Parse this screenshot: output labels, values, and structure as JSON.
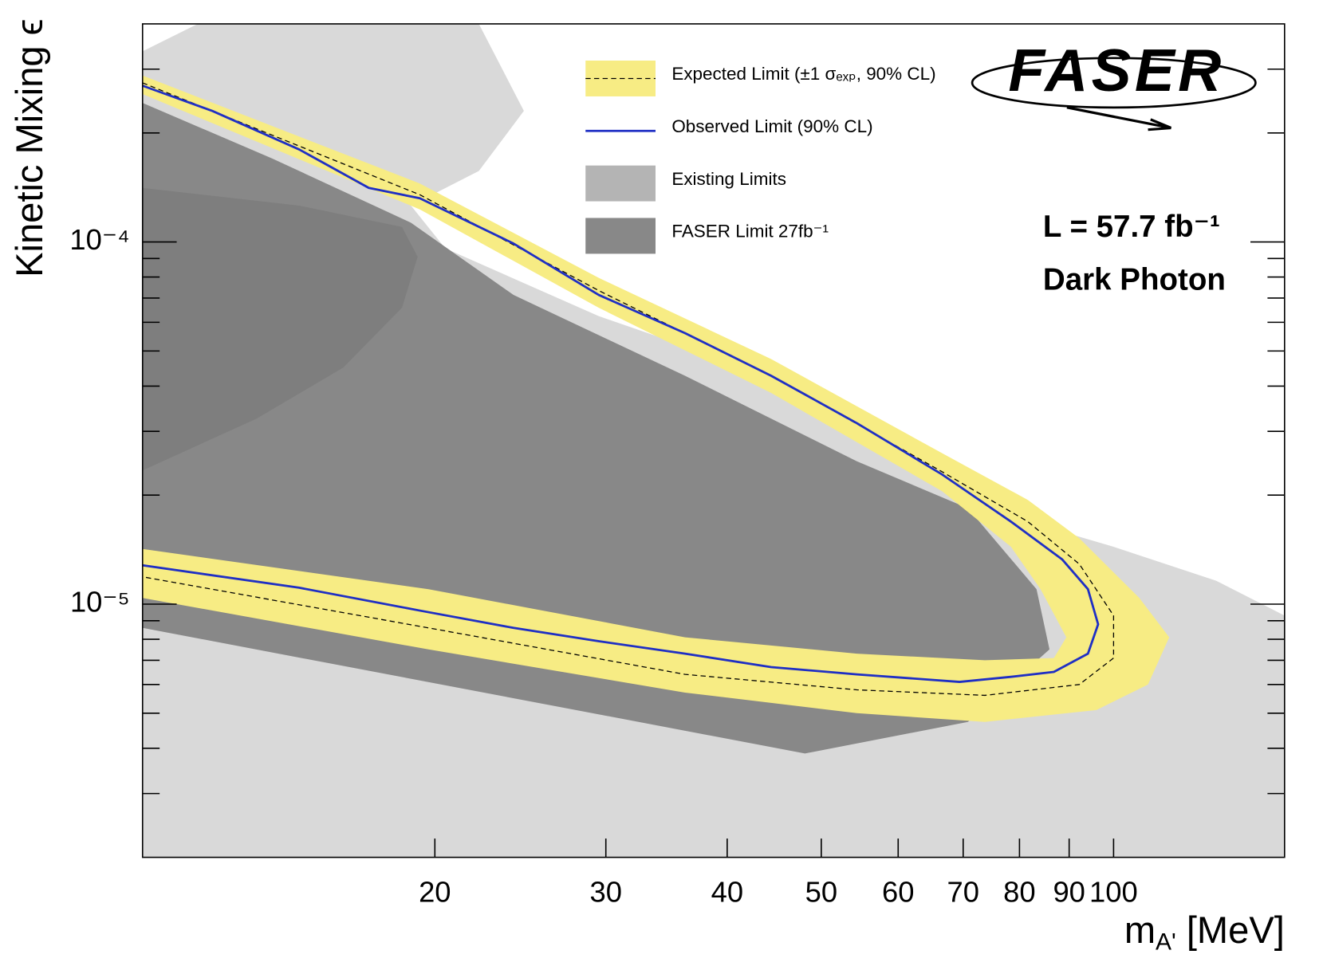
{
  "chart_data": {
    "type": "line",
    "xlabel": {
      "text": "m",
      "sub": "A'",
      "unit": " [MeV]"
    },
    "ylabel": "Kinetic Mixing ϵ",
    "xscale": "log",
    "yscale": "log",
    "xlim": [
      10,
      150
    ],
    "ylim": [
      2e-06,
      0.0004
    ],
    "xticks": [
      20,
      30,
      40,
      50,
      60,
      70,
      80,
      90,
      100
    ],
    "yticks": [
      {
        "value": 0.0001,
        "label": "10⁻⁴"
      },
      {
        "value": 1e-05,
        "label": "10⁻⁵"
      }
    ],
    "yminorticks": [
      3e-06,
      4e-06,
      5e-06,
      6e-06,
      7e-06,
      8e-06,
      9e-06,
      2e-05,
      3e-05,
      4e-05,
      5e-05,
      6e-05,
      7e-05,
      8e-05,
      9e-05,
      0.0002,
      0.0003
    ],
    "series": [
      {
        "kind": "area",
        "color": "#d9d9d9",
        "x": [
          10,
          150,
          150,
          127.6,
          100,
          81.6,
          66.6,
          60.2,
          48.1,
          36.2,
          29.5,
          20.5,
          18.9,
          22.2,
          24.7,
          22.2,
          11.4,
          10
        ],
        "y": [
          2e-06,
          2e-06,
          9.3e-06,
          1.16e-05,
          1.44e-05,
          1.69e-05,
          2.28e-05,
          2.61e-05,
          3.62e-05,
          5.16e-05,
          6.24e-05,
          9.6e-05,
          0.000126,
          0.000157,
          0.00023,
          0.0004,
          0.0004,
          0.000336
        ]
      },
      {
        "kind": "area",
        "color": "#888888",
        "x": [
          10,
          13.6,
          18.9,
          24.1,
          36.2,
          54.4,
          70.8,
          83.3,
          85.9,
          70.8,
          48.1,
          10
        ],
        "y": [
          0.000242,
          0.00017,
          0.000113,
          7.14e-05,
          4.27e-05,
          2.48e-05,
          1.84e-05,
          1.1e-05,
          7.5e-06,
          4.73e-06,
          3.87e-06,
          8.6e-06
        ]
      },
      {
        "kind": "area",
        "color": "#000000",
        "opacity": 0.07,
        "x": [
          10,
          14.5,
          18.5,
          19.2,
          18.5,
          16.1,
          13.1,
          10
        ],
        "y": [
          0.000141,
          0.000126,
          0.00011,
          9.1e-05,
          6.58e-05,
          4.5e-05,
          3.25e-05,
          2.34e-05
        ]
      },
      {
        "kind": "area",
        "color": "#f7ec84",
        "x": [
          10,
          19.3,
          29.5,
          44.4,
          66.6,
          81.6,
          92.2,
          106.3,
          114.1,
          108.5,
          96.0,
          73.7,
          54.4,
          36.2,
          19.7,
          10,
          10,
          19.7,
          36.2,
          54.4,
          73.7,
          86.8,
          89.4,
          84.1,
          78.4,
          66.6,
          44.4,
          29.5,
          19.3,
          10
        ],
        "y": [
          0.000288,
          0.000145,
          7.96e-05,
          4.75e-05,
          2.61e-05,
          1.94e-05,
          1.52e-05,
          1.04e-05,
          8.1e-06,
          6e-06,
          5.1e-06,
          4.73e-06,
          5e-06,
          5.7e-06,
          7.5e-06,
          1.04e-05,
          1.42e-05,
          1.1e-05,
          8.1e-06,
          7.3e-06,
          7e-06,
          7.1e-06,
          8.1e-06,
          1.1e-05,
          1.44e-05,
          2.05e-05,
          3.83e-05,
          6.58e-05,
          0.000123,
          0.000256
        ]
      },
      {
        "kind": "line",
        "color": "#000000",
        "dash": true,
        "width": 1.2,
        "x": [
          10,
          19.3,
          29.5,
          44.4,
          66.6,
          81.6,
          92.2,
          100,
          100,
          92.2,
          73.7,
          54.4,
          36.2,
          19.7,
          10
        ],
        "y": [
          0.000275,
          0.000135,
          7.34e-05,
          4.27e-05,
          2.32e-05,
          1.69e-05,
          1.29e-05,
          9.3e-06,
          7.1e-06,
          6e-06,
          5.6e-06,
          5.8e-06,
          6.4e-06,
          8.6e-06,
          1.19e-05
        ]
      },
      {
        "kind": "line",
        "color": "#1f2fc4",
        "width": 2.6,
        "x": [
          10,
          11.8,
          14.5,
          17.1,
          19.3,
          24.1,
          29.5,
          36.2,
          44.4,
          54.4,
          66.6,
          78.4,
          88.5,
          94.1,
          96.4,
          94.1,
          86.8,
          78.4,
          69.4,
          54.4,
          44.4,
          36.2,
          29.5,
          24.1,
          19.3,
          14.5,
          10
        ],
        "y": [
          0.00027,
          0.00023,
          0.00018,
          0.000141,
          0.000132,
          9.9e-05,
          7.14e-05,
          5.6e-05,
          4.27e-05,
          3.16e-05,
          2.28e-05,
          1.69e-05,
          1.33e-05,
          1.1e-05,
          8.8e-06,
          7.3e-06,
          6.5e-06,
          6.3e-06,
          6.1e-06,
          6.4e-06,
          6.7e-06,
          7.3e-06,
          7.9e-06,
          8.6e-06,
          9.6e-06,
          1.11e-05,
          1.28e-05
        ]
      }
    ],
    "legend": {
      "position": "upper right",
      "entries": [
        {
          "label": "Expected Limit (±1 σₑₓₚ, 90% CL)",
          "kind": "band",
          "color": "#f7ec84",
          "line_color": "#000000",
          "dash": true
        },
        {
          "label": "Observed Limit (90% CL)",
          "kind": "line",
          "color": "#1f2fc4"
        },
        {
          "label": "Existing Limits",
          "kind": "area",
          "color": "#b4b4b4"
        },
        {
          "label": "FASER Limit 27fb⁻¹",
          "kind": "area",
          "color": "#888888"
        }
      ]
    },
    "annotations": [
      "L = 57.7 fb⁻¹",
      "Dark Photon"
    ],
    "logo": "FASER"
  }
}
